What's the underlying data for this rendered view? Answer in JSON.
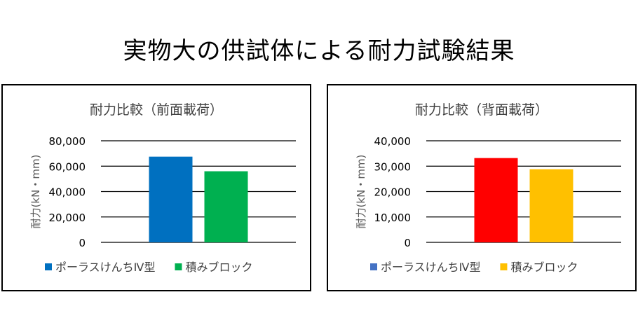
{
  "page": {
    "title": "実物大の供試体による耐力試験結果"
  },
  "chart_data": [
    {
      "type": "bar",
      "title": "耐力比較（前面載荷）",
      "ylabel": "耐力(kN・mm)",
      "xlabel": "",
      "ylim": [
        0,
        80000
      ],
      "yticks": [
        "80,000",
        "60,000",
        "40,000",
        "20,000",
        "0"
      ],
      "ytick_values": [
        80000,
        60000,
        40000,
        20000,
        0
      ],
      "grid": true,
      "legend_position": "bottom",
      "series": [
        {
          "name": "ポーラスけんちⅣ型",
          "values": [
            67500
          ],
          "color": "#0070C0"
        },
        {
          "name": "積みブロック",
          "values": [
            56000
          ],
          "color": "#00B050"
        }
      ]
    },
    {
      "type": "bar",
      "title": "耐力比較（背面載荷）",
      "ylabel": "耐力(kN・mm)",
      "xlabel": "",
      "ylim": [
        0,
        40000
      ],
      "yticks": [
        "40,000",
        "30,000",
        "20,000",
        "10,000",
        "0"
      ],
      "ytick_values": [
        40000,
        30000,
        20000,
        10000,
        0
      ],
      "grid": true,
      "legend_position": "bottom",
      "series": [
        {
          "name": "ポーラスけんちⅣ型",
          "values": [
            33200
          ],
          "color": "#FF0000",
          "legend_color": "#4472C4"
        },
        {
          "name": "積みブロック",
          "values": [
            28800
          ],
          "color": "#FFC000"
        }
      ]
    }
  ]
}
